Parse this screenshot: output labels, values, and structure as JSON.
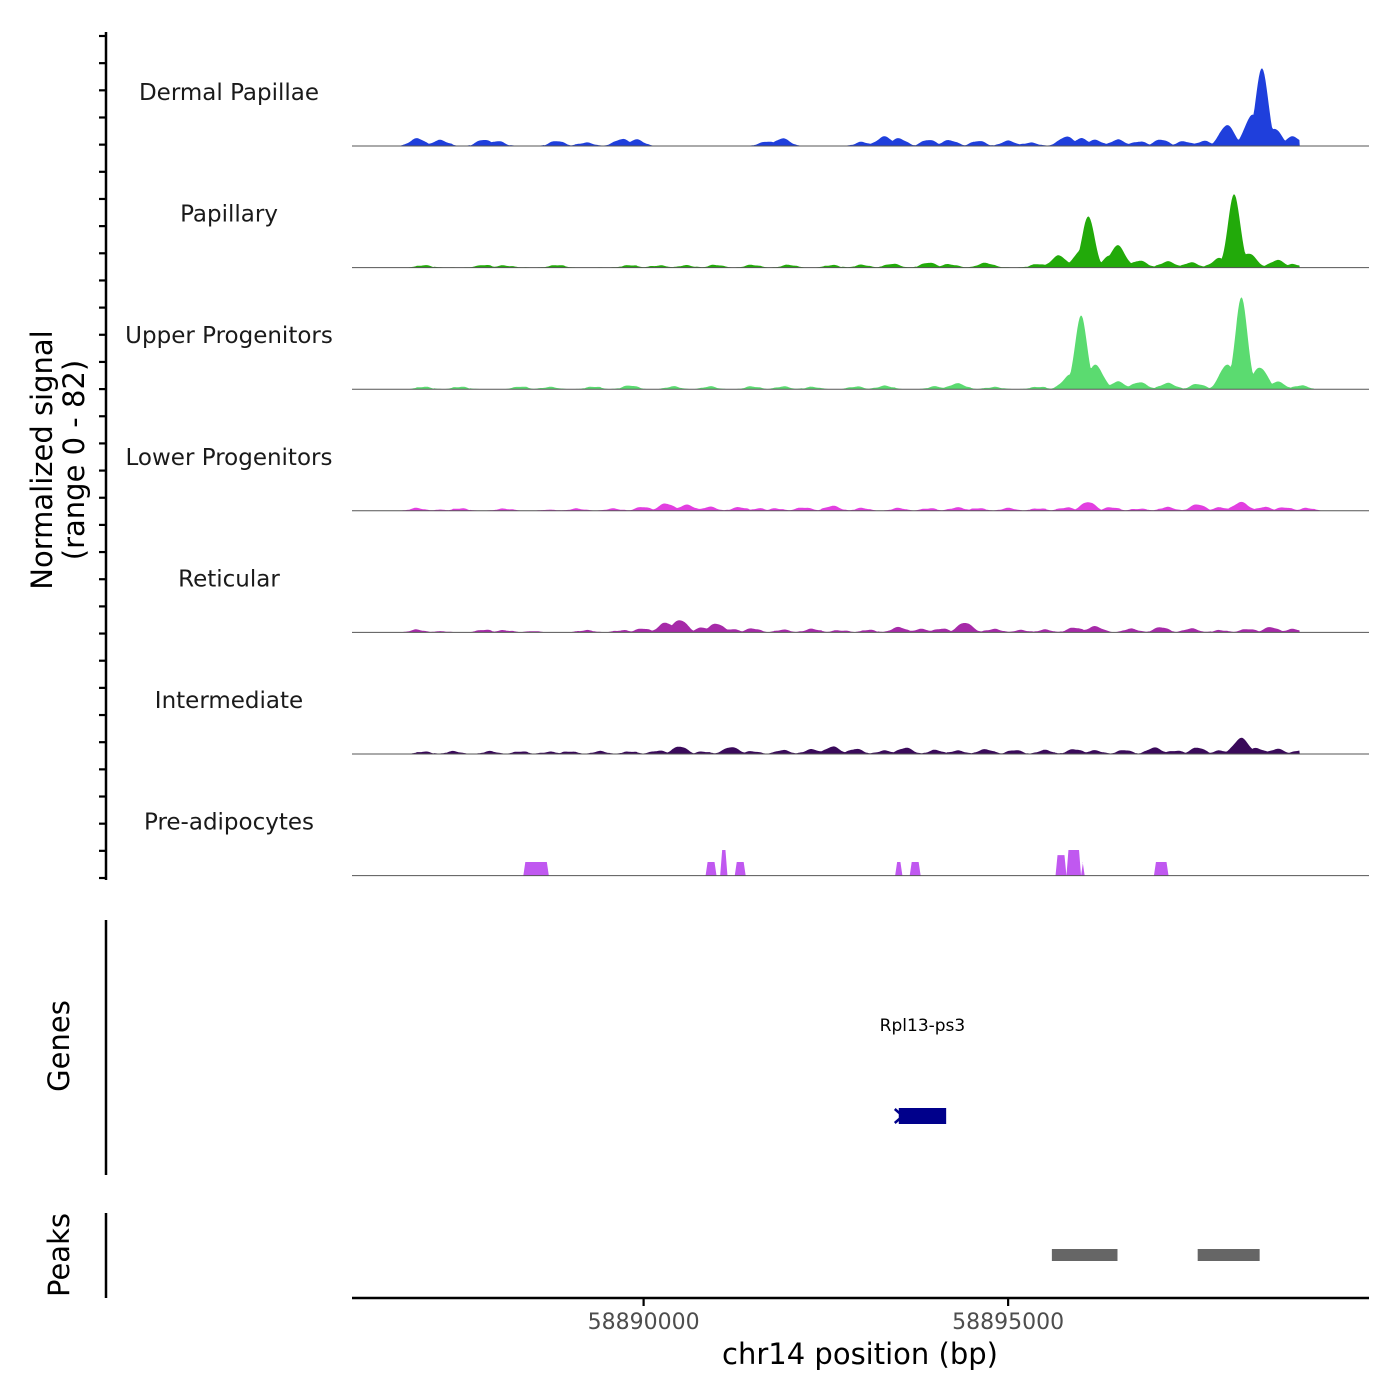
{
  "chart_data": {
    "type": "area",
    "title": "",
    "ylabel_line1": "Normalized signal",
    "ylabel_line2": "(range 0 - 82)",
    "xlabel": "chr14 position (bp)",
    "genes_label": "Genes",
    "peaks_label": "Peaks",
    "y_range": [
      0,
      82
    ],
    "x_range": [
      58886000,
      58899950
    ],
    "x_ticks": [
      {
        "value": 58890000,
        "label": "58890000"
      },
      {
        "value": 58895000,
        "label": "58895000"
      }
    ],
    "tracks": [
      {
        "name": "Dermal Papillae",
        "color": "#1f3fdc",
        "peaks": [
          [
            58886900,
            6
          ],
          [
            58887200,
            5
          ],
          [
            58887800,
            5
          ],
          [
            58888000,
            4
          ],
          [
            58888800,
            4
          ],
          [
            58889200,
            3
          ],
          [
            58889700,
            6
          ],
          [
            58889900,
            5
          ],
          [
            58891700,
            4
          ],
          [
            58891900,
            6
          ],
          [
            58893000,
            3
          ],
          [
            58893300,
            8
          ],
          [
            58893500,
            6
          ],
          [
            58893900,
            5
          ],
          [
            58894200,
            5
          ],
          [
            58894600,
            4
          ],
          [
            58895000,
            4
          ],
          [
            58895300,
            3
          ],
          [
            58895800,
            8
          ],
          [
            58896000,
            6
          ],
          [
            58896200,
            5
          ],
          [
            58896500,
            5
          ],
          [
            58896800,
            4
          ],
          [
            58897100,
            5
          ],
          [
            58897400,
            4
          ],
          [
            58897700,
            4
          ],
          [
            58898000,
            17
          ],
          [
            58898350,
            26
          ],
          [
            58898480,
            64
          ],
          [
            58898650,
            14
          ],
          [
            58898900,
            8
          ]
        ],
        "range": [
          58886650,
          58899000
        ]
      },
      {
        "name": "Papillary",
        "color": "#22aa0a",
        "peaks": [
          [
            58887000,
            2
          ],
          [
            58887800,
            2
          ],
          [
            58888100,
            2
          ],
          [
            58888800,
            2
          ],
          [
            58889800,
            2
          ],
          [
            58890200,
            2
          ],
          [
            58890600,
            2
          ],
          [
            58891000,
            2
          ],
          [
            58891500,
            2
          ],
          [
            58892000,
            2
          ],
          [
            58892600,
            2
          ],
          [
            58893000,
            2
          ],
          [
            58893400,
            3
          ],
          [
            58893900,
            4
          ],
          [
            58894200,
            3
          ],
          [
            58894700,
            4
          ],
          [
            58895400,
            3
          ],
          [
            58895700,
            10
          ],
          [
            58896000,
            14
          ],
          [
            58896100,
            42
          ],
          [
            58896400,
            10
          ],
          [
            58896500,
            18
          ],
          [
            58896800,
            6
          ],
          [
            58897200,
            5
          ],
          [
            58897500,
            4
          ],
          [
            58897900,
            8
          ],
          [
            58898100,
            60
          ],
          [
            58898300,
            12
          ],
          [
            58898700,
            6
          ],
          [
            58898900,
            3
          ]
        ],
        "range": [
          58886650,
          58899000
        ]
      },
      {
        "name": "Upper Progenitors",
        "color": "#5bdb70",
        "peaks": [
          [
            58887000,
            2
          ],
          [
            58887500,
            2
          ],
          [
            58888300,
            2
          ],
          [
            58888700,
            2
          ],
          [
            58889300,
            2
          ],
          [
            58889800,
            3
          ],
          [
            58890400,
            2
          ],
          [
            58890900,
            2
          ],
          [
            58891500,
            2
          ],
          [
            58891900,
            2
          ],
          [
            58892300,
            2
          ],
          [
            58892900,
            2
          ],
          [
            58893300,
            3
          ],
          [
            58894000,
            2
          ],
          [
            58894300,
            5
          ],
          [
            58894800,
            2
          ],
          [
            58895400,
            2
          ],
          [
            58895850,
            12
          ],
          [
            58896000,
            60
          ],
          [
            58896200,
            20
          ],
          [
            58896500,
            6
          ],
          [
            58896800,
            6
          ],
          [
            58897200,
            5
          ],
          [
            58897600,
            4
          ],
          [
            58898000,
            20
          ],
          [
            58898200,
            75
          ],
          [
            58898450,
            18
          ],
          [
            58898700,
            6
          ],
          [
            58899000,
            3
          ]
        ],
        "range": [
          58886650,
          58899200
        ]
      },
      {
        "name": "Lower Progenitors",
        "color": "#e23fe0",
        "peaks": [
          [
            58886900,
            2
          ],
          [
            58887200,
            1
          ],
          [
            58887500,
            2
          ],
          [
            58888100,
            2
          ],
          [
            58888700,
            1
          ],
          [
            58889100,
            2
          ],
          [
            58889600,
            2
          ],
          [
            58890000,
            3
          ],
          [
            58890300,
            6
          ],
          [
            58890600,
            5
          ],
          [
            58890900,
            3
          ],
          [
            58891300,
            3
          ],
          [
            58891600,
            2
          ],
          [
            58891800,
            2
          ],
          [
            58892200,
            3
          ],
          [
            58892600,
            4
          ],
          [
            58893000,
            2
          ],
          [
            58893500,
            2
          ],
          [
            58893900,
            2
          ],
          [
            58894300,
            3
          ],
          [
            58894600,
            2
          ],
          [
            58895000,
            2
          ],
          [
            58895400,
            2
          ],
          [
            58895800,
            3
          ],
          [
            58896100,
            7
          ],
          [
            58896400,
            3
          ],
          [
            58896800,
            2
          ],
          [
            58897200,
            3
          ],
          [
            58897600,
            5
          ],
          [
            58897900,
            3
          ],
          [
            58898200,
            7
          ],
          [
            58898500,
            3
          ],
          [
            58898800,
            3
          ],
          [
            58899100,
            2
          ]
        ],
        "range": [
          58886650,
          58899400
        ]
      },
      {
        "name": "Reticular",
        "color": "#a62aa8",
        "peaks": [
          [
            58886900,
            2
          ],
          [
            58887200,
            1
          ],
          [
            58887800,
            2
          ],
          [
            58888100,
            2
          ],
          [
            58888500,
            1
          ],
          [
            58889200,
            2
          ],
          [
            58889700,
            2
          ],
          [
            58890000,
            3
          ],
          [
            58890300,
            8
          ],
          [
            58890500,
            10
          ],
          [
            58890800,
            4
          ],
          [
            58891000,
            7
          ],
          [
            58891200,
            3
          ],
          [
            58891500,
            3
          ],
          [
            58891900,
            2
          ],
          [
            58892300,
            3
          ],
          [
            58892700,
            2
          ],
          [
            58893100,
            2
          ],
          [
            58893500,
            4
          ],
          [
            58893800,
            3
          ],
          [
            58894100,
            3
          ],
          [
            58894400,
            8
          ],
          [
            58894800,
            3
          ],
          [
            58895200,
            2
          ],
          [
            58895500,
            2
          ],
          [
            58895900,
            4
          ],
          [
            58896200,
            5
          ],
          [
            58896700,
            3
          ],
          [
            58897100,
            4
          ],
          [
            58897500,
            3
          ],
          [
            58897900,
            2
          ],
          [
            58898300,
            3
          ],
          [
            58898600,
            4
          ],
          [
            58898900,
            3
          ]
        ],
        "range": [
          58886650,
          58899000
        ]
      },
      {
        "name": "Intermediate",
        "color": "#3a0a5a",
        "peaks": [
          [
            58887000,
            2
          ],
          [
            58887400,
            2
          ],
          [
            58887900,
            2
          ],
          [
            58888300,
            2
          ],
          [
            58888700,
            2
          ],
          [
            58889000,
            2
          ],
          [
            58889400,
            2
          ],
          [
            58889800,
            2
          ],
          [
            58890200,
            3
          ],
          [
            58890500,
            6
          ],
          [
            58890800,
            2
          ],
          [
            58891200,
            6
          ],
          [
            58891500,
            2
          ],
          [
            58891900,
            3
          ],
          [
            58892300,
            4
          ],
          [
            58892600,
            6
          ],
          [
            58892900,
            4
          ],
          [
            58893300,
            3
          ],
          [
            58893600,
            5
          ],
          [
            58894000,
            3
          ],
          [
            58894300,
            3
          ],
          [
            58894700,
            4
          ],
          [
            58895100,
            3
          ],
          [
            58895500,
            3
          ],
          [
            58895900,
            4
          ],
          [
            58896200,
            3
          ],
          [
            58896600,
            3
          ],
          [
            58897000,
            5
          ],
          [
            58897300,
            3
          ],
          [
            58897600,
            5
          ],
          [
            58897900,
            3
          ],
          [
            58898200,
            13
          ],
          [
            58898400,
            5
          ],
          [
            58898700,
            4
          ],
          [
            58899000,
            3
          ]
        ],
        "range": [
          58886650,
          58899000
        ]
      },
      {
        "name": "Pre-adipocytes",
        "color": "#c058f0",
        "blocks": [
          [
            58888350,
            58888700,
            8
          ],
          [
            58890850,
            58891000,
            8
          ],
          [
            58891050,
            58891150,
            15
          ],
          [
            58891250,
            58891400,
            8
          ],
          [
            58893450,
            58893550,
            8
          ],
          [
            58893650,
            58893800,
            8
          ],
          [
            58895650,
            58895800,
            12
          ],
          [
            58895800,
            58896000,
            15
          ],
          [
            58896000,
            58896050,
            8
          ],
          [
            58897000,
            58897200,
            8
          ]
        ],
        "range": [
          58886650,
          58899000
        ]
      }
    ],
    "genes": [
      {
        "name": "Rpl13-ps3",
        "start": 58893500,
        "end": 58894150,
        "strand": "-",
        "color": "#00008b"
      }
    ],
    "peaks": [
      {
        "start": 58895600,
        "end": 58896500
      },
      {
        "start": 58897600,
        "end": 58898450
      }
    ],
    "peak_color": "#666666"
  }
}
